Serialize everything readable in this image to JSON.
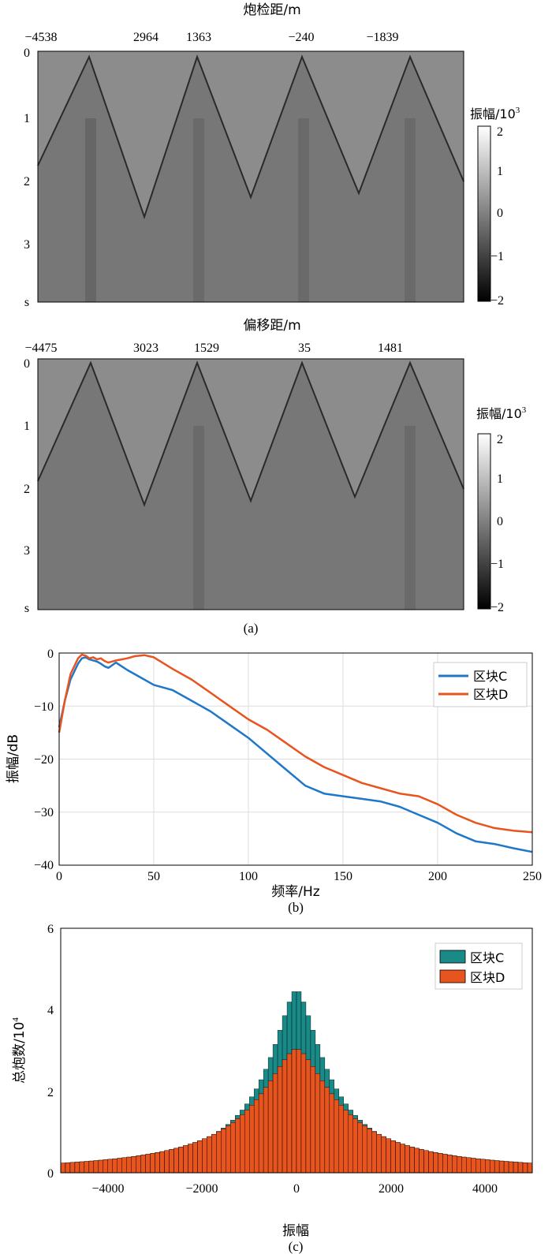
{
  "panel_a": {
    "caption": "(a)",
    "top": {
      "title": "炮检距/m",
      "top_ticks": [
        "−4538",
        "2964",
        "1363",
        "−240",
        "−1839"
      ],
      "y_ticks": [
        "0",
        "1",
        "2",
        "3",
        "s"
      ],
      "colorbar_label": "振幅/10",
      "colorbar_exp": "3",
      "colorbar_ticks": [
        "2",
        "1",
        "0",
        "−1",
        "−2"
      ]
    },
    "bottom": {
      "title": "偏移距/m",
      "top_ticks": [
        "−4475",
        "3023",
        "1529",
        "35",
        "1481"
      ],
      "y_ticks": [
        "0",
        "1",
        "2",
        "3",
        "s"
      ],
      "colorbar_label": "振幅/10",
      "colorbar_exp": "3",
      "colorbar_ticks": [
        "2",
        "1",
        "0",
        "−1",
        "−2"
      ]
    }
  },
  "colors": {
    "block_c_line": "#1f77c8",
    "block_d_line": "#e8541e",
    "block_c_bar": "#1a8a88",
    "block_d_bar": "#e8541e",
    "seismic_bg": "#8c8c8c"
  },
  "chart_data": [
    {
      "type": "line",
      "caption": "(b)",
      "xlabel": "频率/Hz",
      "ylabel": "振幅/dB",
      "xlim": [
        0,
        250
      ],
      "ylim": [
        -40,
        0
      ],
      "x_ticks": [
        "0",
        "50",
        "100",
        "150",
        "200",
        "250"
      ],
      "y_ticks": [
        "0",
        "−10",
        "−20",
        "−30",
        "−40"
      ],
      "grid": true,
      "legend_position": "top-right",
      "series": [
        {
          "name": "区块C",
          "x": [
            0,
            3,
            6,
            8,
            10,
            12,
            14,
            16,
            18,
            20,
            22,
            24,
            26,
            28,
            30,
            33,
            36,
            40,
            45,
            50,
            60,
            70,
            80,
            90,
            100,
            110,
            120,
            130,
            140,
            150,
            160,
            170,
            180,
            190,
            200,
            210,
            220,
            230,
            240,
            250
          ],
          "y": [
            -14,
            -9,
            -5,
            -3.5,
            -2,
            -1,
            -0.8,
            -1.2,
            -1.4,
            -1.6,
            -2,
            -2.5,
            -2.8,
            -2.3,
            -1.8,
            -2.5,
            -3.2,
            -4,
            -5,
            -6,
            -7,
            -9,
            -11,
            -13.5,
            -16,
            -19,
            -22,
            -25,
            -26.5,
            -27,
            -27.5,
            -28,
            -29,
            -30.5,
            -32,
            -34,
            -35.5,
            -36,
            -36.8,
            -37.5
          ]
        },
        {
          "name": "区块D",
          "x": [
            0,
            3,
            6,
            8,
            10,
            12,
            14,
            16,
            18,
            20,
            22,
            24,
            26,
            28,
            30,
            33,
            36,
            40,
            45,
            50,
            60,
            70,
            80,
            90,
            100,
            110,
            120,
            130,
            140,
            150,
            160,
            170,
            180,
            190,
            200,
            210,
            220,
            230,
            240,
            250
          ],
          "y": [
            -15,
            -9,
            -4,
            -2.5,
            -1,
            -0.3,
            -0.5,
            -1,
            -0.8,
            -1.2,
            -1,
            -1.5,
            -1.8,
            -1.6,
            -1.4,
            -1.2,
            -1,
            -0.6,
            -0.4,
            -0.8,
            -3,
            -5,
            -7.5,
            -10,
            -12.5,
            -14.5,
            -17,
            -19.5,
            -21.5,
            -23,
            -24.5,
            -25.5,
            -26.5,
            -27,
            -28.5,
            -30.5,
            -32,
            -33,
            -33.5,
            -33.8
          ]
        }
      ]
    },
    {
      "type": "bar",
      "caption": "(c)",
      "xlabel": "振幅",
      "ylabel": "总炮数/10",
      "ylabel_exp": "4",
      "xlim": [
        -5000,
        5000
      ],
      "ylim": [
        0,
        6
      ],
      "x_ticks": [
        "−4000",
        "−2000",
        "0",
        "2000",
        "4000"
      ],
      "y_ticks": [
        "0",
        "2",
        "4",
        "6"
      ],
      "bin_width": 100,
      "legend_position": "top-right",
      "stacked": true,
      "series": [
        {
          "name": "区块C",
          "peak": 4.5,
          "width": 900
        },
        {
          "name": "区块D",
          "peak": 3.05,
          "width": 1250
        }
      ]
    }
  ]
}
